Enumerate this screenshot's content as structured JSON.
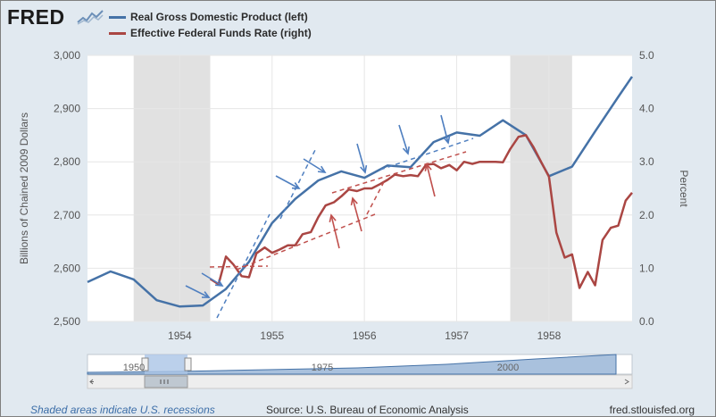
{
  "brand": {
    "logo_text": "FRED"
  },
  "legend": [
    {
      "label": "Real Gross Domestic Product (left)",
      "color": "#4572a7"
    },
    {
      "label": "Effective Federal Funds Rate (right)",
      "color": "#aa4643"
    }
  ],
  "footer": {
    "note": "Shaded areas indicate U.S. recessions",
    "source": "Source: U.S. Bureau of Economic Analysis",
    "site": "fred.stlouisfed.org"
  },
  "navigator": {
    "labels": [
      "1950",
      "1975",
      "2000"
    ]
  },
  "colors": {
    "gdp": "#4572a7",
    "ffr": "#aa4643",
    "recession": "#e1e1e1",
    "annotation_blue": "#4f7fc0",
    "annotation_red": "#c0504d"
  },
  "chart_data": {
    "type": "line",
    "title": "",
    "xlabel": "",
    "ylabel_left": "Billions of Chained 2009 Dollars",
    "ylabel_right": "Percent",
    "xlim": [
      1953.0,
      1958.9
    ],
    "ylim_left": [
      2500,
      3000
    ],
    "ylim_right": [
      0.0,
      5.0
    ],
    "x_ticks": [
      1954,
      1955,
      1956,
      1957,
      1958
    ],
    "x_tick_labels": [
      "1954",
      "1955",
      "1956",
      "1957",
      "1958"
    ],
    "y_ticks_left": [
      2500,
      2600,
      2700,
      2800,
      2900,
      3000
    ],
    "y_tick_labels_left": [
      "2,500",
      "2,600",
      "2,700",
      "2,800",
      "2,900",
      "3,000"
    ],
    "y_ticks_right": [
      0,
      1,
      2,
      3,
      4,
      5
    ],
    "y_tick_labels_right": [
      "0.0",
      "1.0",
      "2.0",
      "3.0",
      "4.0",
      "5.0"
    ],
    "grid": true,
    "recessions": [
      [
        1953.5,
        1954.33
      ],
      [
        1957.58,
        1958.25
      ]
    ],
    "series": [
      {
        "name": "Real Gross Domestic Product (left)",
        "axis": "left",
        "x": [
          1953.0,
          1953.25,
          1953.5,
          1953.75,
          1954.0,
          1954.25,
          1954.5,
          1954.75,
          1955.0,
          1955.25,
          1955.5,
          1955.75,
          1956.0,
          1956.25,
          1956.5,
          1956.75,
          1957.0,
          1957.25,
          1957.5,
          1957.75,
          1958.0,
          1958.25,
          1958.5,
          1958.75,
          1958.9
        ],
        "values": [
          2574,
          2594,
          2579,
          2540,
          2528,
          2530,
          2561,
          2612,
          2685,
          2730,
          2765,
          2782,
          2770,
          2793,
          2790,
          2837,
          2855,
          2849,
          2878,
          2850,
          2773,
          2791,
          2857,
          2922,
          2960
        ]
      },
      {
        "name": "Effective Federal Funds Rate (right)",
        "axis": "right",
        "x": [
          1954.33,
          1954.42,
          1954.5,
          1954.58,
          1954.67,
          1954.75,
          1954.83,
          1954.92,
          1955.0,
          1955.08,
          1955.17,
          1955.25,
          1955.33,
          1955.42,
          1955.5,
          1955.58,
          1955.67,
          1955.75,
          1955.83,
          1955.92,
          1956.0,
          1956.08,
          1956.17,
          1956.25,
          1956.33,
          1956.42,
          1956.5,
          1956.58,
          1956.67,
          1956.75,
          1956.83,
          1956.92,
          1957.0,
          1957.08,
          1957.17,
          1957.25,
          1957.33,
          1957.42,
          1957.5,
          1957.58,
          1957.67,
          1957.75,
          1957.83,
          1957.92,
          1958.0,
          1958.08,
          1958.17,
          1958.25,
          1958.33,
          1958.42,
          1958.5,
          1958.58,
          1958.67,
          1958.75,
          1958.83,
          1958.9
        ],
        "values": [
          0.8,
          0.7,
          1.22,
          1.07,
          0.85,
          0.83,
          1.28,
          1.39,
          1.29,
          1.35,
          1.43,
          1.43,
          1.64,
          1.68,
          1.96,
          2.18,
          2.24,
          2.35,
          2.48,
          2.45,
          2.5,
          2.5,
          2.58,
          2.66,
          2.76,
          2.73,
          2.75,
          2.73,
          2.95,
          2.96,
          2.88,
          2.94,
          2.84,
          3.0,
          2.96,
          3.0,
          3.0,
          3.0,
          2.99,
          3.24,
          3.47,
          3.5,
          3.28,
          2.98,
          2.72,
          1.67,
          1.2,
          1.26,
          0.63,
          0.93,
          0.68,
          1.53,
          1.76,
          1.8,
          2.27,
          2.42
        ]
      }
    ]
  }
}
